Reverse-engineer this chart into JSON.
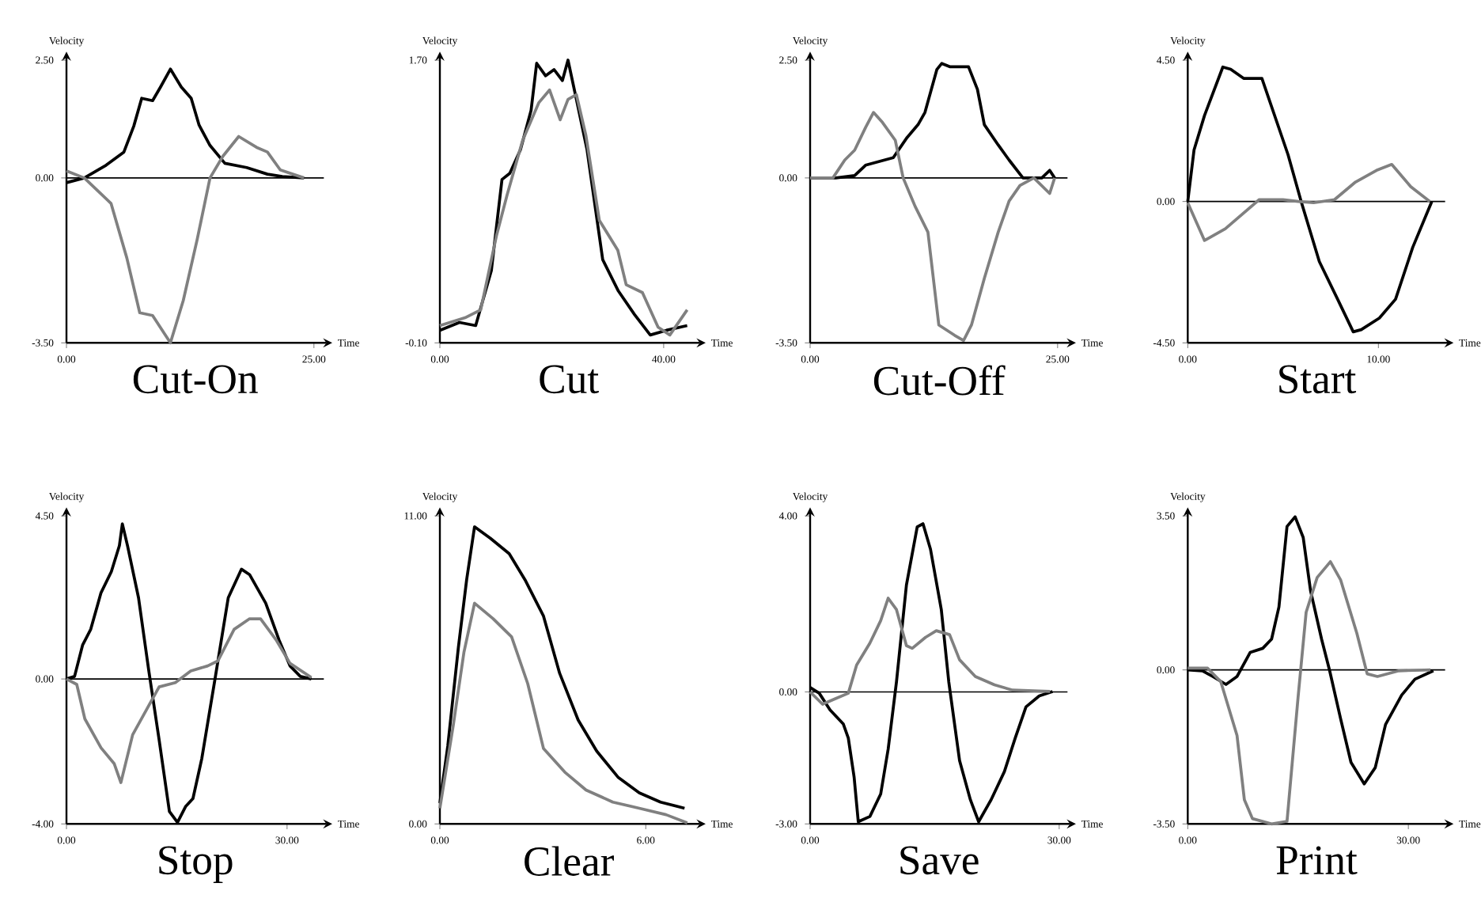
{
  "chart_data": [
    {
      "type": "line",
      "title": "Cut-On",
      "xlabel": "Time",
      "ylabel": "Velocity",
      "xlim": [
        0,
        26
      ],
      "ylim": [
        -3.5,
        2.5
      ],
      "xticks": [
        {
          "value": 0,
          "label": "0.00"
        },
        {
          "value": 25,
          "label": "25.00"
        }
      ],
      "yticks": [
        {
          "value": -3.5,
          "label": "-3.50"
        },
        {
          "value": 0,
          "label": "0.00"
        },
        {
          "value": 2.5,
          "label": "2.50"
        }
      ],
      "ref_lines": [
        {
          "axis": "y",
          "value": 0
        }
      ],
      "series": [
        {
          "color": "#000000",
          "x": [
            0,
            1.8,
            4,
            5.8,
            6.8,
            7.6,
            8.7,
            9.5,
            10.5,
            11.6,
            12.6,
            13.4,
            14.5,
            16,
            18.2,
            20.3,
            21.8,
            24
          ],
          "values": [
            -0.1,
            0,
            0.27,
            0.55,
            1.1,
            1.69,
            1.64,
            1.93,
            2.31,
            1.93,
            1.69,
            1.12,
            0.69,
            0.31,
            0.22,
            0.08,
            0.03,
            0
          ]
        },
        {
          "color": "#808080",
          "x": [
            0,
            1.8,
            4.5,
            6.1,
            7.4,
            8.7,
            10.5,
            11.8,
            13.2,
            14.5,
            15.8,
            17.4,
            19.2,
            20.3,
            21.6,
            24
          ],
          "values": [
            0.15,
            0,
            -0.54,
            -1.7,
            -2.86,
            -2.92,
            -3.5,
            -2.6,
            -1.31,
            0,
            0.46,
            0.88,
            0.65,
            0.55,
            0.17,
            0
          ]
        }
      ]
    },
    {
      "type": "line",
      "title": "Cut",
      "xlabel": "Time",
      "ylabel": "Velocity",
      "xlim": [
        0,
        46
      ],
      "ylim": [
        -0.1,
        1.7
      ],
      "xticks": [
        {
          "value": 0,
          "label": "0.00"
        },
        {
          "value": 40,
          "label": "40.00"
        }
      ],
      "yticks": [
        {
          "value": -0.1,
          "label": "-0.10"
        },
        {
          "value": 1.7,
          "label": "1.70"
        }
      ],
      "series": [
        {
          "color": "#000000",
          "x": [
            0,
            3.5,
            6.4,
            9.2,
            11.1,
            12.5,
            14.4,
            16.3,
            17.3,
            18.9,
            20.4,
            21.9,
            22.9,
            24.4,
            26.3,
            29.1,
            31.9,
            34.8,
            37.6,
            40.5,
            44.2
          ],
          "values": [
            -0.02,
            0.03,
            0.01,
            0.36,
            0.94,
            0.98,
            1.13,
            1.38,
            1.68,
            1.6,
            1.64,
            1.57,
            1.7,
            1.45,
            1.13,
            0.43,
            0.23,
            0.08,
            -0.05,
            -0.02,
            0.01
          ]
        },
        {
          "color": "#808080",
          "x": [
            0,
            4.5,
            7.3,
            10.1,
            12,
            14.8,
            17.7,
            19.6,
            21.5,
            22.9,
            24.4,
            26.1,
            28.5,
            31.8,
            33.3,
            36.2,
            39,
            41.1,
            44.2
          ],
          "values": [
            0.01,
            0.06,
            0.11,
            0.58,
            0.84,
            1.19,
            1.43,
            1.51,
            1.32,
            1.45,
            1.48,
            1.22,
            0.68,
            0.49,
            0.27,
            0.22,
            0,
            -0.05,
            0.11
          ]
        }
      ]
    },
    {
      "type": "line",
      "title": "Cut-Off",
      "xlabel": "Time",
      "ylabel": "Velocity",
      "xlim": [
        0,
        26
      ],
      "ylim": [
        -3.5,
        2.5
      ],
      "xticks": [
        {
          "value": 0,
          "label": "0.00"
        },
        {
          "value": 25,
          "label": "25.00"
        }
      ],
      "yticks": [
        {
          "value": -3.5,
          "label": "-3.50"
        },
        {
          "value": 0,
          "label": "0.00"
        },
        {
          "value": 2.5,
          "label": "2.50"
        }
      ],
      "ref_lines": [
        {
          "axis": "y",
          "value": 0
        }
      ],
      "series": [
        {
          "color": "#000000",
          "x": [
            0,
            2.6,
            4.5,
            5.6,
            8.4,
            9.8,
            10.9,
            11.6,
            12.8,
            13.3,
            14.1,
            16,
            16.9,
            17.6,
            19,
            20.1,
            21.5,
            23.4,
            24.2,
            24.7
          ],
          "values": [
            0,
            0,
            0.05,
            0.27,
            0.43,
            0.86,
            1.13,
            1.39,
            2.3,
            2.43,
            2.36,
            2.36,
            1.88,
            1.13,
            0.7,
            0.38,
            0,
            0,
            0.16,
            0
          ]
        },
        {
          "color": "#808080",
          "x": [
            0,
            2.3,
            3.5,
            4.5,
            5.6,
            6.4,
            7.3,
            8.6,
            9.4,
            10.6,
            11.9,
            13,
            14.6,
            15.5,
            16.3,
            17.6,
            19,
            20.1,
            21.2,
            22.6,
            24.2,
            24.7
          ],
          "values": [
            0,
            0,
            0.38,
            0.59,
            1.07,
            1.39,
            1.18,
            0.8,
            0,
            -0.6,
            -1.15,
            -3.12,
            -3.34,
            -3.45,
            -3.12,
            -2.13,
            -1.15,
            -0.49,
            -0.16,
            0,
            -0.33,
            0
          ]
        }
      ]
    },
    {
      "type": "line",
      "title": "Start",
      "xlabel": "Time",
      "ylabel": "Velocity",
      "xlim": [
        0,
        13.5
      ],
      "ylim": [
        -4.5,
        4.5
      ],
      "xticks": [
        {
          "value": 0,
          "label": "0.00"
        },
        {
          "value": 10,
          "label": "10.00"
        }
      ],
      "yticks": [
        {
          "value": -4.5,
          "label": "-4.50"
        },
        {
          "value": 0,
          "label": "0.00"
        },
        {
          "value": 4.5,
          "label": "4.50"
        }
      ],
      "ref_lines": [
        {
          "axis": "y",
          "value": 0
        }
      ],
      "series": [
        {
          "color": "#000000",
          "x": [
            0,
            0.33,
            0.88,
            1.84,
            2.25,
            2.93,
            3.89,
            5.26,
            5.95,
            6.9,
            7.86,
            8.68,
            9.1,
            10.05,
            10.9,
            11.8,
            12.8
          ],
          "values": [
            0,
            1.64,
            2.74,
            4.28,
            4.21,
            3.92,
            3.92,
            1.49,
            0,
            -1.91,
            -3.11,
            -4.15,
            -4.08,
            -3.71,
            -3.11,
            -1.46,
            0
          ]
        },
        {
          "color": "#808080",
          "x": [
            0,
            0.88,
            1.97,
            3.75,
            5,
            5.8,
            6.6,
            7.7,
            8.8,
            9.9,
            10.7,
            11.7,
            12.7
          ],
          "values": [
            -0.04,
            -1.24,
            -0.87,
            0.06,
            0.06,
            0,
            -0.04,
            0.06,
            0.62,
            0.99,
            1.18,
            0.47,
            0
          ]
        }
      ]
    },
    {
      "type": "line",
      "title": "Stop",
      "xlabel": "Time",
      "ylabel": "Velocity",
      "xlim": [
        0,
        35
      ],
      "ylim": [
        -4,
        4.5
      ],
      "xticks": [
        {
          "value": 0,
          "label": "0.00"
        },
        {
          "value": 30,
          "label": "30.00"
        }
      ],
      "yticks": [
        {
          "value": -4,
          "label": "-4.00"
        },
        {
          "value": 0,
          "label": "0.00"
        },
        {
          "value": 4.5,
          "label": "4.50"
        }
      ],
      "ref_lines": [
        {
          "axis": "y",
          "value": 0
        }
      ],
      "series": [
        {
          "color": "#000000",
          "x": [
            0,
            1.1,
            2.2,
            3.3,
            4.7,
            6.1,
            7.2,
            7.6,
            8.3,
            9.8,
            11.2,
            12.6,
            14,
            15.1,
            16.2,
            17.2,
            18.4,
            20.2,
            22,
            23.8,
            24.9,
            27.1,
            28.9,
            30.4,
            31.8,
            33.3
          ],
          "values": [
            0,
            0.07,
            0.94,
            1.37,
            2.38,
            2.96,
            3.68,
            4.28,
            3.68,
            2.24,
            0.22,
            -1.68,
            -3.66,
            -3.96,
            -3.52,
            -3.3,
            -2.2,
            0,
            2.24,
            3.03,
            2.88,
            2.09,
            1.08,
            0.36,
            0.07,
            0
          ]
        },
        {
          "color": "#808080",
          "x": [
            0,
            1.4,
            2.5,
            4.7,
            6.5,
            7.4,
            9,
            11.2,
            12.6,
            14.8,
            16.9,
            19.2,
            20.6,
            22.8,
            24.9,
            26.4,
            28.5,
            30.4,
            33.3
          ],
          "values": [
            0,
            -0.15,
            -1.1,
            -1.9,
            -2.34,
            -2.86,
            -1.54,
            -0.73,
            -0.22,
            -0.1,
            0.22,
            0.36,
            0.5,
            1.37,
            1.66,
            1.66,
            1.08,
            0.43,
            0.04
          ]
        }
      ]
    },
    {
      "type": "line",
      "title": "Clear",
      "xlabel": "Time",
      "ylabel": "Velocity",
      "xlim": [
        0,
        7.5
      ],
      "ylim": [
        0,
        11
      ],
      "xticks": [
        {
          "value": 0,
          "label": "0.00"
        },
        {
          "value": 6,
          "label": "6.00"
        }
      ],
      "yticks": [
        {
          "value": 0,
          "label": "0.00"
        },
        {
          "value": 11,
          "label": "11.00"
        }
      ],
      "series": [
        {
          "color": "#000000",
          "x": [
            0,
            0.23,
            0.54,
            0.78,
            1.01,
            1.47,
            2.02,
            2.48,
            3.02,
            3.49,
            4.03,
            4.57,
            5.19,
            5.81,
            6.43,
            7.13
          ],
          "values": [
            0.74,
            2.78,
            6.31,
            8.72,
            10.61,
            10.2,
            9.65,
            8.72,
            7.42,
            5.38,
            3.71,
            2.6,
            1.67,
            1.11,
            0.78,
            0.56
          ]
        },
        {
          "color": "#808080",
          "x": [
            0,
            0.39,
            0.7,
            1.01,
            1.55,
            2.09,
            2.56,
            3.02,
            3.64,
            4.26,
            5.04,
            5.81,
            6.59,
            7.21
          ],
          "values": [
            0.56,
            3.52,
            6.12,
            7.88,
            7.33,
            6.68,
            5.01,
            2.69,
            1.85,
            1.21,
            0.78,
            0.56,
            0.33,
            0.04
          ]
        }
      ]
    },
    {
      "type": "line",
      "title": "Save",
      "xlabel": "Time",
      "ylabel": "Velocity",
      "xlim": [
        0,
        31
      ],
      "ylim": [
        -3,
        4
      ],
      "xticks": [
        {
          "value": 0,
          "label": "0.00"
        },
        {
          "value": 30,
          "label": "30.00"
        }
      ],
      "yticks": [
        {
          "value": -3,
          "label": "-3.00"
        },
        {
          "value": 0,
          "label": "0.00"
        },
        {
          "value": 4,
          "label": "4.00"
        }
      ],
      "ref_lines": [
        {
          "axis": "y",
          "value": 0
        }
      ],
      "series": [
        {
          "color": "#000000",
          "x": [
            0,
            1.1,
            2.4,
            4,
            4.6,
            5.3,
            5.8,
            7.2,
            8.5,
            9.4,
            10.4,
            11.6,
            12.9,
            13.6,
            14.5,
            15.8,
            16.7,
            18,
            19.3,
            20.3,
            21.8,
            23.4,
            24.7,
            26,
            27.6,
            29.2
          ],
          "values": [
            0.1,
            -0.03,
            -0.41,
            -0.73,
            -1.05,
            -1.94,
            -2.95,
            -2.83,
            -2.32,
            -1.3,
            0.23,
            2.43,
            3.75,
            3.82,
            3.24,
            1.87,
            0.23,
            -1.56,
            -2.45,
            -2.95,
            -2.45,
            -1.81,
            -1.05,
            -0.34,
            -0.09,
            0.01
          ]
        },
        {
          "color": "#808080",
          "x": [
            0,
            1.5,
            3.1,
            4.6,
            5.6,
            7.2,
            8.5,
            9.4,
            10.4,
            11.6,
            12.3,
            13.9,
            15.2,
            16.8,
            18,
            19.9,
            22.2,
            24.4,
            28.9
          ],
          "values": [
            0,
            -0.28,
            -0.15,
            -0.03,
            0.61,
            1.11,
            1.62,
            2.13,
            1.87,
            1.05,
            0.99,
            1.24,
            1.39,
            1.3,
            0.73,
            0.35,
            0.16,
            0.04,
            0.01
          ]
        }
      ]
    },
    {
      "type": "line",
      "title": "Print",
      "xlabel": "Time",
      "ylabel": "Velocity",
      "xlim": [
        0,
        35
      ],
      "ylim": [
        -3.5,
        3.5
      ],
      "xticks": [
        {
          "value": 0,
          "label": "0.00"
        },
        {
          "value": 30,
          "label": "30.00"
        }
      ],
      "yticks": [
        {
          "value": -3.5,
          "label": "-3.50"
        },
        {
          "value": 0,
          "label": "0.00"
        },
        {
          "value": 3.5,
          "label": "3.50"
        }
      ],
      "ref_lines": [
        {
          "axis": "y",
          "value": 0
        }
      ],
      "series": [
        {
          "color": "#000000",
          "x": [
            0,
            2,
            3.4,
            5.2,
            6.7,
            8.5,
            10.2,
            11.4,
            12.4,
            13.5,
            14.6,
            15.7,
            16.7,
            18.2,
            19.3,
            20.8,
            22.2,
            24,
            25.5,
            26.9,
            29.1,
            30.9,
            33.4
          ],
          "values": [
            0,
            -0.02,
            -0.15,
            -0.33,
            -0.15,
            0.4,
            0.49,
            0.7,
            1.43,
            3.26,
            3.48,
            3.01,
            1.8,
            0.7,
            -0.02,
            -1.12,
            -2.1,
            -2.59,
            -2.22,
            -1.24,
            -0.57,
            -0.21,
            -0.02
          ]
        },
        {
          "color": "#808080",
          "x": [
            0,
            2.7,
            4.5,
            6.7,
            7.7,
            8.8,
            11.4,
            13.5,
            15,
            16.1,
            17.6,
            19.4,
            20.8,
            23,
            24.4,
            25.8,
            28.7,
            33
          ],
          "values": [
            0.04,
            0.04,
            -0.27,
            -1.49,
            -2.95,
            -3.38,
            -3.5,
            -3.44,
            -0.63,
            1.31,
            2.1,
            2.46,
            2.04,
            0.83,
            -0.09,
            -0.15,
            -0.02,
            0
          ]
        }
      ]
    }
  ]
}
